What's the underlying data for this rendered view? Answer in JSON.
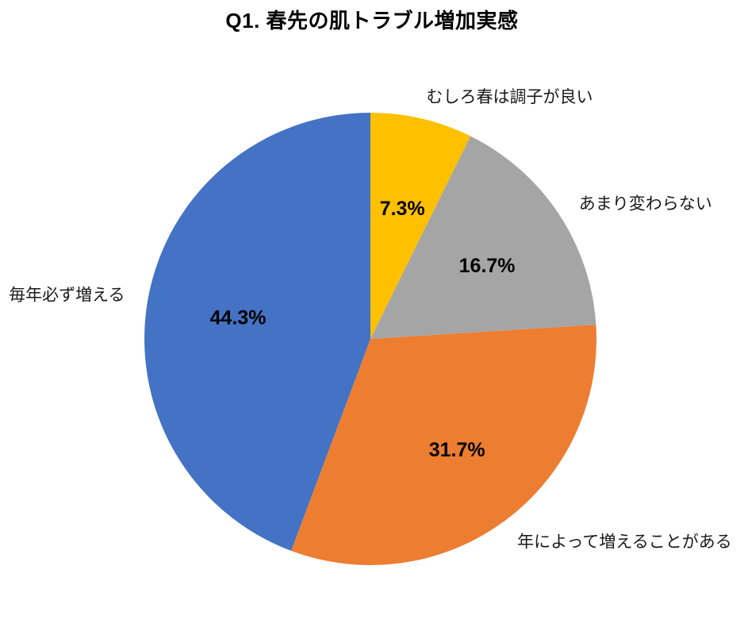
{
  "chart_data": {
    "type": "pie",
    "title": "Q1. 春先の肌トラブル増加実感",
    "start_angle": "12-oclock",
    "direction": "clockwise",
    "legend_position": "none",
    "labels_outside": true,
    "percent_labels_inside": true,
    "total": 100.0,
    "slices": [
      {
        "label": "むしろ春は調子が良い",
        "value": 7.3,
        "percent_label": "7.3%",
        "color": "#FFC000"
      },
      {
        "label": "あまり変わらない",
        "value": 16.7,
        "percent_label": "16.7%",
        "color": "#A5A5A5"
      },
      {
        "label": "年によって増えることがある",
        "value": 31.7,
        "percent_label": "31.7%",
        "color": "#ED7D31"
      },
      {
        "label": "毎年必ず増える",
        "value": 44.3,
        "percent_label": "44.3%",
        "color": "#4472C4"
      }
    ],
    "text_color": "#000000",
    "background_color": "#ffffff"
  }
}
